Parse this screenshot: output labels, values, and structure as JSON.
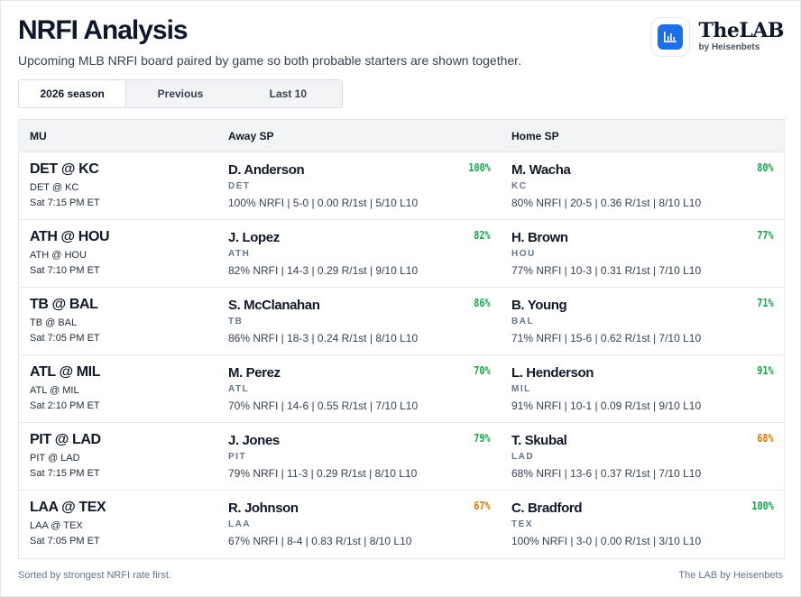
{
  "header": {
    "title": "NRFI Analysis",
    "subtitle": "Upcoming MLB NRFI board paired by game so both probable starters are shown together."
  },
  "brand": {
    "name": "TheLAB",
    "by": "by Heisenbets",
    "icon": "bar-chart-icon",
    "accent": "#1d6fe8"
  },
  "tabs": [
    {
      "label": "2026 season",
      "active": true
    },
    {
      "label": "Previous",
      "active": false
    },
    {
      "label": "Last 10",
      "active": false
    }
  ],
  "columns": {
    "mu": "MU",
    "away": "Away SP",
    "home": "Home SP"
  },
  "colors": {
    "pct_high": "#16a34a",
    "pct_low": "#d97706"
  },
  "rows": [
    {
      "matchup": "DET @ KC",
      "matchup_sub": "DET @ KC",
      "time": "Sat 7:15 PM ET",
      "away": {
        "name": "D. Anderson",
        "team": "DET",
        "pct": "100%",
        "level": "green",
        "stats": "100% NRFI | 5-0 | 0.00 R/1st | 5/10 L10"
      },
      "home": {
        "name": "M. Wacha",
        "team": "KC",
        "pct": "80%",
        "level": "green",
        "stats": "80% NRFI | 20-5 | 0.36 R/1st | 8/10 L10"
      }
    },
    {
      "matchup": "ATH @ HOU",
      "matchup_sub": "ATH @ HOU",
      "time": "Sat 7:10 PM ET",
      "away": {
        "name": "J. Lopez",
        "team": "ATH",
        "pct": "82%",
        "level": "green",
        "stats": "82% NRFI | 14-3 | 0.29 R/1st | 9/10 L10"
      },
      "home": {
        "name": "H. Brown",
        "team": "HOU",
        "pct": "77%",
        "level": "green",
        "stats": "77% NRFI | 10-3 | 0.31 R/1st | 7/10 L10"
      }
    },
    {
      "matchup": "TB @ BAL",
      "matchup_sub": "TB @ BAL",
      "time": "Sat 7:05 PM ET",
      "away": {
        "name": "S. McClanahan",
        "team": "TB",
        "pct": "86%",
        "level": "green",
        "stats": "86% NRFI | 18-3 | 0.24 R/1st | 8/10 L10"
      },
      "home": {
        "name": "B. Young",
        "team": "BAL",
        "pct": "71%",
        "level": "green",
        "stats": "71% NRFI | 15-6 | 0.62 R/1st | 7/10 L10"
      }
    },
    {
      "matchup": "ATL @ MIL",
      "matchup_sub": "ATL @ MIL",
      "time": "Sat 2:10 PM ET",
      "away": {
        "name": "M. Perez",
        "team": "ATL",
        "pct": "70%",
        "level": "green",
        "stats": "70% NRFI | 14-6 | 0.55 R/1st | 7/10 L10"
      },
      "home": {
        "name": "L. Henderson",
        "team": "MIL",
        "pct": "91%",
        "level": "green",
        "stats": "91% NRFI | 10-1 | 0.09 R/1st | 9/10 L10"
      }
    },
    {
      "matchup": "PIT @ LAD",
      "matchup_sub": "PIT @ LAD",
      "time": "Sat 7:15 PM ET",
      "away": {
        "name": "J. Jones",
        "team": "PIT",
        "pct": "79%",
        "level": "green",
        "stats": "79% NRFI | 11-3 | 0.29 R/1st | 8/10 L10"
      },
      "home": {
        "name": "T. Skubal",
        "team": "LAD",
        "pct": "68%",
        "level": "amber",
        "stats": "68% NRFI | 13-6 | 0.37 R/1st | 7/10 L10"
      }
    },
    {
      "matchup": "LAA @ TEX",
      "matchup_sub": "LAA @ TEX",
      "time": "Sat 7:05 PM ET",
      "away": {
        "name": "R. Johnson",
        "team": "LAA",
        "pct": "67%",
        "level": "amber",
        "stats": "67% NRFI | 8-4 | 0.83 R/1st | 8/10 L10"
      },
      "home": {
        "name": "C. Bradford",
        "team": "TEX",
        "pct": "100%",
        "level": "green",
        "stats": "100% NRFI | 3-0 | 0.00 R/1st | 3/10 L10"
      }
    }
  ],
  "footer": {
    "note": "Sorted by strongest NRFI rate first.",
    "credit": "The LAB by Heisenbets"
  }
}
